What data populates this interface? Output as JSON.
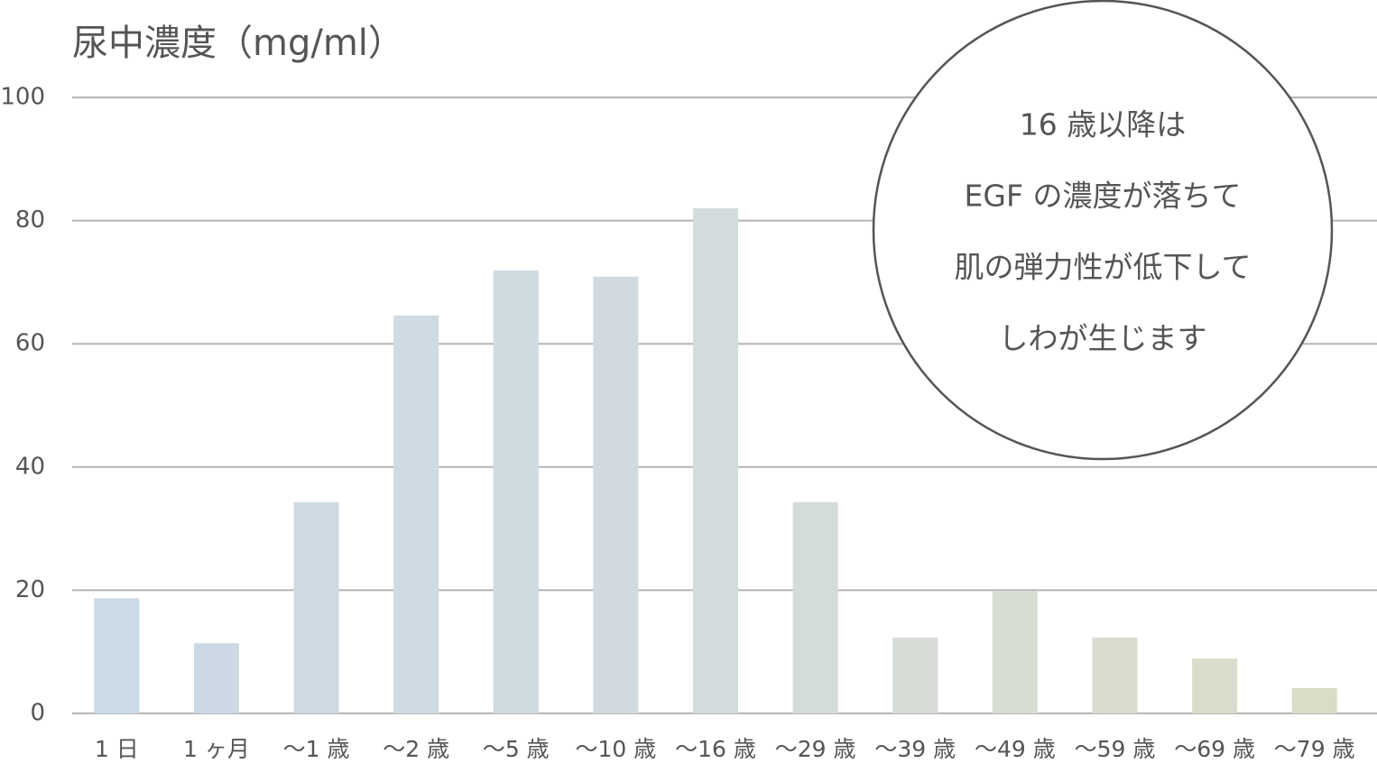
{
  "chart_data": {
    "type": "bar",
    "title": "尿中濃度（mg/ml）",
    "categories": [
      "1 日",
      "1 ヶ月",
      "～1 歳",
      "～2 歳",
      "～5 歳",
      "～10 歳",
      "～16 歳",
      "～29 歳",
      "～39 歳",
      "～49 歳",
      "～59 歳",
      "～69 歳",
      "～79 歳"
    ],
    "values": [
      18.7,
      11.4,
      34.3,
      64.6,
      71.9,
      70.9,
      82.0,
      34.3,
      12.3,
      19.9,
      12.3,
      8.9,
      4.1
    ],
    "colors": [
      "#ccd9e6",
      "#ccd9e4",
      "#cddae3",
      "#cfdbe2",
      "#d0dbe0",
      "#d1dbdf",
      "#d2dcdd",
      "#d4dcda",
      "#d6ddd6",
      "#d7ddd2",
      "#d8ddcf",
      "#d9ddcb",
      "#dadcc8"
    ],
    "ylim": [
      0,
      100
    ],
    "yticks": [
      0,
      20,
      40,
      60,
      80,
      100
    ],
    "grid": true,
    "annotation": [
      "16 歳以降は",
      "EGF の濃度が落ちて",
      "肌の弾力性が低下して",
      "しわが生じます"
    ]
  }
}
